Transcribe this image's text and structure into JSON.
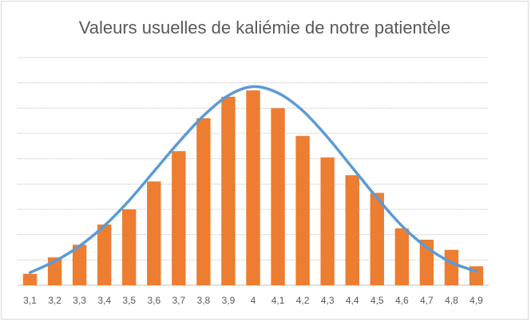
{
  "chart_data": {
    "type": "bar",
    "title": "Valeurs usuelles de kaliémie de notre patientèle",
    "xlabel": "",
    "ylabel": "",
    "categories": [
      "3,1",
      "3,2",
      "3,3",
      "3,4",
      "3,5",
      "3,6",
      "3,7",
      "3,8",
      "3,9",
      "4",
      "4,1",
      "4,2",
      "4,3",
      "4,4",
      "4,5",
      "4,6",
      "4,7",
      "4,8",
      "4,9"
    ],
    "series": [
      {
        "type": "bar",
        "values": [
          0.45,
          1.1,
          1.6,
          2.4,
          3.0,
          4.1,
          5.3,
          6.6,
          7.45,
          7.7,
          7.0,
          5.9,
          5.05,
          4.35,
          3.65,
          2.25,
          1.8,
          1.4,
          0.75
        ]
      },
      {
        "type": "line",
        "values": [
          0.5,
          0.95,
          1.55,
          2.35,
          3.35,
          4.5,
          5.65,
          6.7,
          7.5,
          7.85,
          7.6,
          6.9,
          5.85,
          4.65,
          3.45,
          2.35,
          1.5,
          0.9,
          0.55
        ]
      }
    ],
    "ylim": [
      0,
      9
    ],
    "grid": true,
    "legend": "none",
    "colors": {
      "bar": "#ED7D31",
      "line": "#5B9BD5",
      "grid": "#bfbfbf",
      "axis": "#bfbfbf"
    }
  }
}
